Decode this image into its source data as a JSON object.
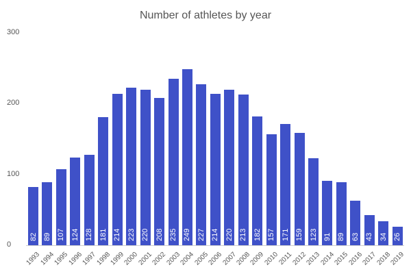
{
  "chart_data": {
    "type": "bar",
    "title": "Number of athletes by year",
    "xlabel": "",
    "ylabel": "",
    "ylim": [
      0,
      300
    ],
    "yticks": [
      0,
      100,
      200,
      300
    ],
    "grid": false,
    "legend": null,
    "bar_color": "#3f51c8",
    "categories": [
      "1993",
      "1994",
      "1995",
      "1996",
      "1997",
      "1998",
      "1999",
      "2000",
      "2001",
      "2002",
      "2003",
      "2004",
      "2005",
      "2006",
      "2007",
      "2008",
      "2009",
      "2010",
      "2011",
      "2012",
      "2013",
      "2014",
      "2015",
      "2016",
      "2017",
      "2018",
      "2019"
    ],
    "values": [
      82,
      89,
      107,
      124,
      128,
      181,
      214,
      223,
      220,
      208,
      235,
      249,
      227,
      214,
      220,
      213,
      182,
      157,
      171,
      159,
      123,
      91,
      89,
      63,
      43,
      34,
      26
    ]
  }
}
